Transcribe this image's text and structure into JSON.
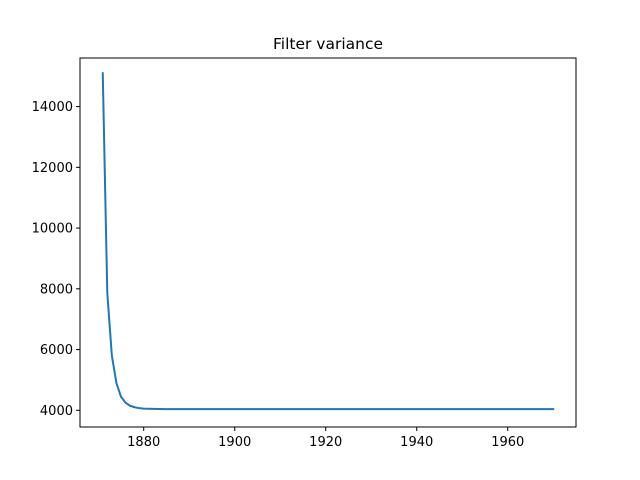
{
  "chart_data": {
    "type": "line",
    "title": "Filter variance",
    "xlabel": "",
    "ylabel": "",
    "xlim": [
      1866,
      1975
    ],
    "ylim": [
      3450,
      15600
    ],
    "xticks": [
      1880,
      1900,
      1920,
      1940,
      1960
    ],
    "yticks": [
      4000,
      6000,
      8000,
      10000,
      12000,
      14000
    ],
    "grid": false,
    "legend": "none",
    "series": [
      {
        "color": "#1f77b4",
        "x": [
          1871,
          1872,
          1873,
          1874,
          1875,
          1876,
          1877,
          1878,
          1879,
          1880,
          1882,
          1885,
          1890,
          1900,
          1920,
          1940,
          1960,
          1970
        ],
        "y": [
          15100,
          7850,
          5800,
          4900,
          4450,
          4250,
          4150,
          4100,
          4070,
          4055,
          4045,
          4040,
          4040,
          4040,
          4040,
          4040,
          4040,
          4040
        ]
      }
    ]
  }
}
